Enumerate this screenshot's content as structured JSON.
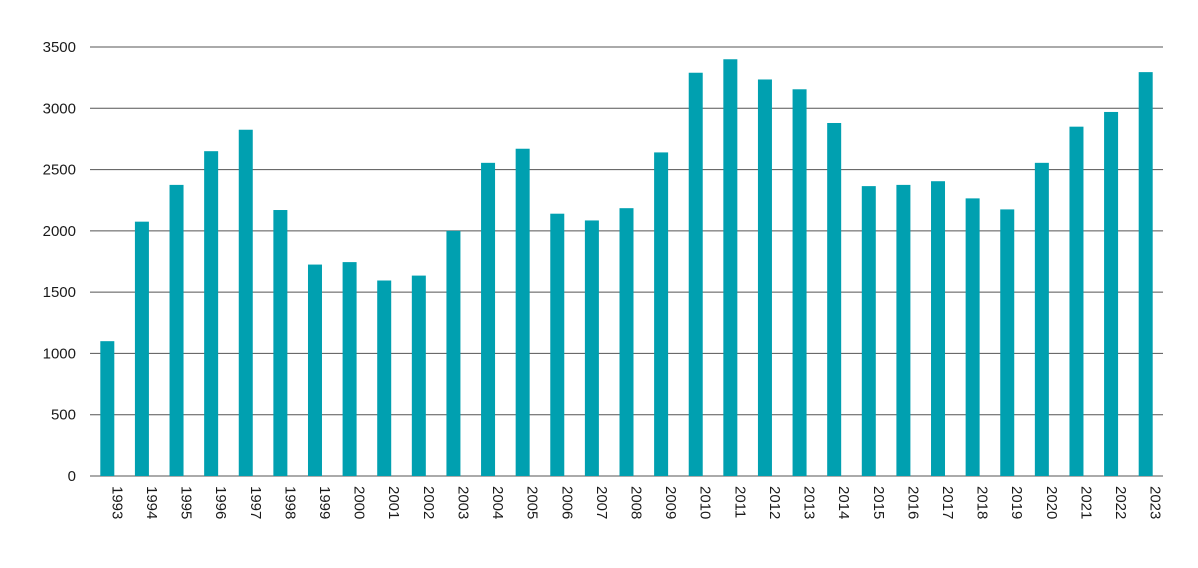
{
  "chart_data": {
    "type": "bar",
    "title": "",
    "xlabel": "",
    "ylabel": "",
    "ylim": [
      0,
      3500
    ],
    "yticks": [
      0,
      500,
      1000,
      1500,
      2000,
      2500,
      3000,
      3500
    ],
    "grid": true,
    "legend": "none",
    "bar_color": "#00a0b0",
    "categories": [
      "1993",
      "1994",
      "1995",
      "1996",
      "1997",
      "1998",
      "1999",
      "2000",
      "2001",
      "2002",
      "2003",
      "2004",
      "2005",
      "2006",
      "2007",
      "2008",
      "2009",
      "2010",
      "2011",
      "2012",
      "2013",
      "2014",
      "2015",
      "2016",
      "2017",
      "2018",
      "2019",
      "2020",
      "2021",
      "2022",
      "2023"
    ],
    "values": [
      1100,
      2075,
      2375,
      2650,
      2825,
      2170,
      1725,
      1745,
      1595,
      1635,
      2000,
      2555,
      2670,
      2140,
      2085,
      2185,
      2640,
      3290,
      3400,
      3235,
      3155,
      2880,
      2365,
      2375,
      2405,
      2265,
      2175,
      2555,
      2850,
      2970,
      3295
    ]
  }
}
